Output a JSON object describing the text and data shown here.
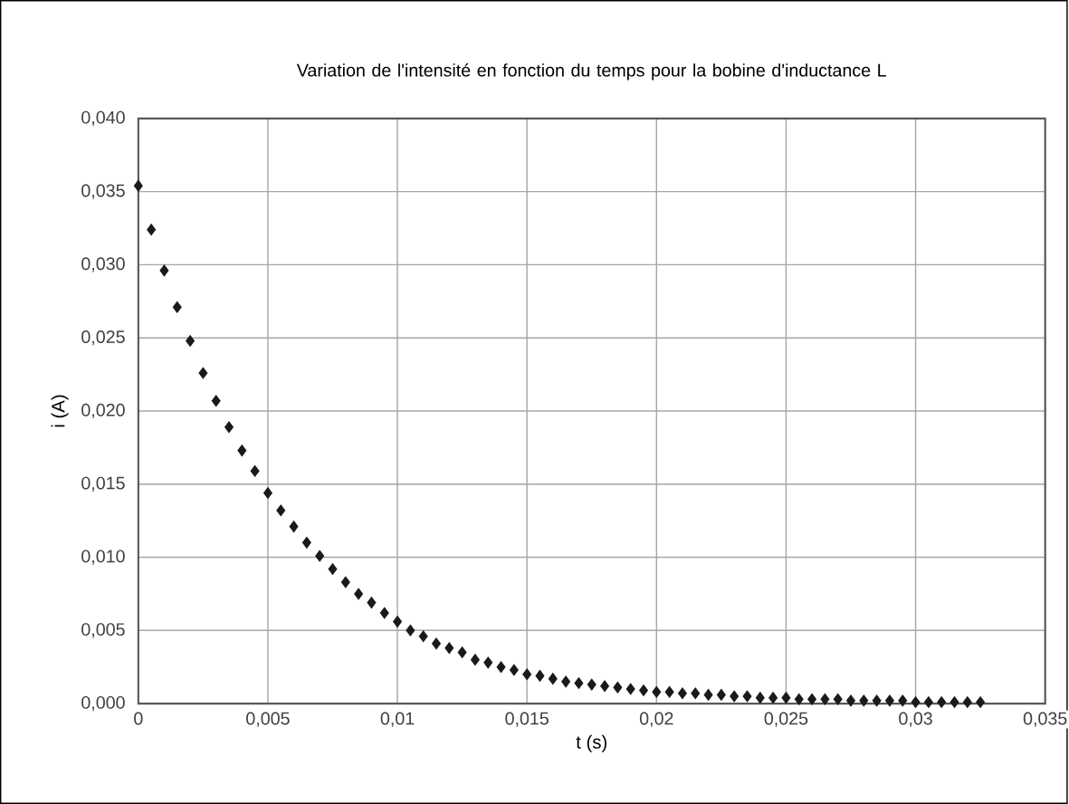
{
  "chart_data": {
    "type": "scatter",
    "title": "Variation de l'intensité en fonction du temps pour la bobine d'inductance L",
    "xlabel": "t (s)",
    "ylabel": "i (A)",
    "x": [
      0,
      0.0005,
      0.001,
      0.0015,
      0.002,
      0.0025,
      0.003,
      0.0035,
      0.004,
      0.0045,
      0.005,
      0.0055,
      0.006,
      0.0065,
      0.007,
      0.0075,
      0.008,
      0.0085,
      0.009,
      0.0095,
      0.01,
      0.0105,
      0.011,
      0.0115,
      0.012,
      0.0125,
      0.013,
      0.0135,
      0.014,
      0.0145,
      0.015,
      0.0155,
      0.016,
      0.0165,
      0.017,
      0.0175,
      0.018,
      0.0185,
      0.019,
      0.0195,
      0.02,
      0.0205,
      0.021,
      0.0215,
      0.022,
      0.0225,
      0.023,
      0.0235,
      0.024,
      0.0245,
      0.025,
      0.0255,
      0.026,
      0.0265,
      0.027,
      0.0275,
      0.028,
      0.0285,
      0.029,
      0.0295,
      0.03,
      0.0305,
      0.031,
      0.0315,
      0.032,
      0.0325
    ],
    "values": [
      0.0354,
      0.0324,
      0.0296,
      0.0271,
      0.0248,
      0.0226,
      0.0207,
      0.0189,
      0.0173,
      0.0159,
      0.0144,
      0.0132,
      0.0121,
      0.011,
      0.0101,
      0.0092,
      0.0083,
      0.0075,
      0.0069,
      0.0062,
      0.0056,
      0.005,
      0.0046,
      0.0041,
      0.0038,
      0.0035,
      0.003,
      0.0028,
      0.0025,
      0.0023,
      0.002,
      0.0019,
      0.0017,
      0.0015,
      0.0014,
      0.0013,
      0.0012,
      0.0011,
      0.001,
      0.0009,
      0.0008,
      0.0008,
      0.0007,
      0.0007,
      0.0006,
      0.0006,
      0.0005,
      0.0005,
      0.0004,
      0.0004,
      0.0004,
      0.0003,
      0.0003,
      0.0003,
      0.0003,
      0.0002,
      0.0002,
      0.0002,
      0.0002,
      0.0002,
      0.0001,
      0.0001,
      0.0001,
      0.0001,
      0.0001,
      0.0001
    ],
    "color": "#1a1a1a",
    "marker": "diamond",
    "grid": true,
    "xlim": [
      0,
      0.035
    ],
    "ylim": [
      0,
      0.04
    ],
    "xticks": [
      {
        "value": 0,
        "label": "0"
      },
      {
        "value": 0.005,
        "label": "0,005"
      },
      {
        "value": 0.01,
        "label": "0,01"
      },
      {
        "value": 0.015,
        "label": "0,015"
      },
      {
        "value": 0.02,
        "label": "0,02"
      },
      {
        "value": 0.025,
        "label": "0,025"
      },
      {
        "value": 0.03,
        "label": "0,03"
      },
      {
        "value": 0.035,
        "label": "0,035"
      }
    ],
    "yticks": [
      {
        "value": 0,
        "label": "0,000"
      },
      {
        "value": 0.005,
        "label": "0,005"
      },
      {
        "value": 0.01,
        "label": "0,010"
      },
      {
        "value": 0.015,
        "label": "0,015"
      },
      {
        "value": 0.02,
        "label": "0,020"
      },
      {
        "value": 0.025,
        "label": "0,025"
      },
      {
        "value": 0.03,
        "label": "0,030"
      },
      {
        "value": 0.035,
        "label": "0,035"
      },
      {
        "value": 0.04,
        "label": "0,040"
      }
    ]
  }
}
